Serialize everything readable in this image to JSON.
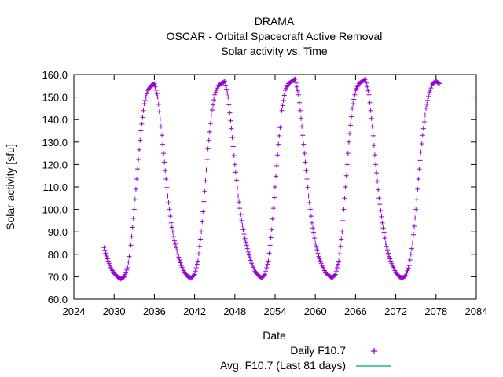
{
  "chart_data": {
    "type": "line",
    "title_lines": [
      "DRAMA",
      "OSCAR - Orbital Spacecraft Active Removal",
      "Solar activity vs. Time"
    ],
    "xlabel": "Date",
    "ylabel": "Solar activity [sfu]",
    "xlim": [
      2024,
      2084
    ],
    "ylim": [
      60,
      160
    ],
    "x_ticks": [
      2024,
      2030,
      2036,
      2042,
      2048,
      2054,
      2060,
      2066,
      2072,
      2078,
      2084
    ],
    "y_ticks": [
      "60.0",
      "70.0",
      "80.0",
      "90.0",
      "100.0",
      "110.0",
      "120.0",
      "130.0",
      "140.0",
      "150.0",
      "160.0"
    ],
    "grid": false,
    "legend_position": "bottom",
    "colors": {
      "daily": "#9400d3",
      "avg": "#009e73",
      "axis": "#000000"
    },
    "series": [
      {
        "name": "Daily F10.7",
        "marker": "+",
        "x": [
          2028.5,
          2029.0,
          2029.5,
          2030.0,
          2030.5,
          2031.0,
          2031.5,
          2032.0,
          2032.5,
          2033.0,
          2033.5,
          2034.0,
          2034.5,
          2035.0,
          2035.5,
          2036.0,
          2036.5,
          2037.0,
          2037.5,
          2038.0,
          2038.5,
          2039.0,
          2039.5,
          2040.0,
          2040.5,
          2041.0,
          2041.5,
          2042.0,
          2042.5,
          2043.0,
          2043.5,
          2044.0,
          2044.5,
          2045.0,
          2045.5,
          2046.0,
          2046.5,
          2047.0,
          2047.5,
          2048.0,
          2048.5,
          2049.0,
          2049.5,
          2050.0,
          2050.5,
          2051.0,
          2051.5,
          2052.0,
          2052.5,
          2053.0,
          2053.5,
          2054.0,
          2054.5,
          2055.0,
          2055.5,
          2056.0,
          2056.5,
          2057.0,
          2057.5,
          2058.0,
          2058.5,
          2059.0,
          2059.5,
          2060.0,
          2060.5,
          2061.0,
          2061.5,
          2062.0,
          2062.5,
          2063.0,
          2063.5,
          2064.0,
          2064.5,
          2065.0,
          2065.5,
          2066.0,
          2066.5,
          2067.0,
          2067.5,
          2068.0,
          2068.5,
          2069.0,
          2069.5,
          2070.0,
          2070.5,
          2071.0,
          2071.5,
          2072.0,
          2072.5,
          2073.0,
          2073.5,
          2074.0,
          2074.5,
          2075.0,
          2075.5,
          2076.0,
          2076.5,
          2077.0,
          2077.5,
          2078.0,
          2078.5
        ],
        "y": [
          83,
          78,
          74,
          71.5,
          70,
          69,
          70,
          74,
          84,
          100,
          118,
          135,
          147,
          153,
          155,
          156,
          150,
          137,
          121,
          106,
          94,
          86,
          80,
          75,
          72,
          70,
          69.5,
          71,
          77,
          90,
          108,
          127,
          142,
          151,
          155,
          156,
          157,
          150,
          136,
          120,
          106,
          95,
          87,
          81,
          76,
          72.5,
          70.5,
          69.5,
          71,
          77,
          91,
          110,
          129,
          144,
          153,
          156,
          157,
          158,
          151,
          137,
          121,
          106,
          94,
          85,
          79,
          75,
          72,
          70.5,
          69.5,
          71,
          77,
          90,
          110,
          130,
          145,
          153,
          156,
          157,
          158,
          151,
          137,
          120,
          105,
          94,
          85,
          79,
          75,
          72,
          70,
          69.5,
          70.5,
          75,
          85,
          100,
          118,
          133,
          145,
          152,
          156,
          157,
          156
        ]
      },
      {
        "name": "Avg. F10.7 (Last 81 days)",
        "marker": "line",
        "x": [],
        "y": []
      }
    ]
  }
}
